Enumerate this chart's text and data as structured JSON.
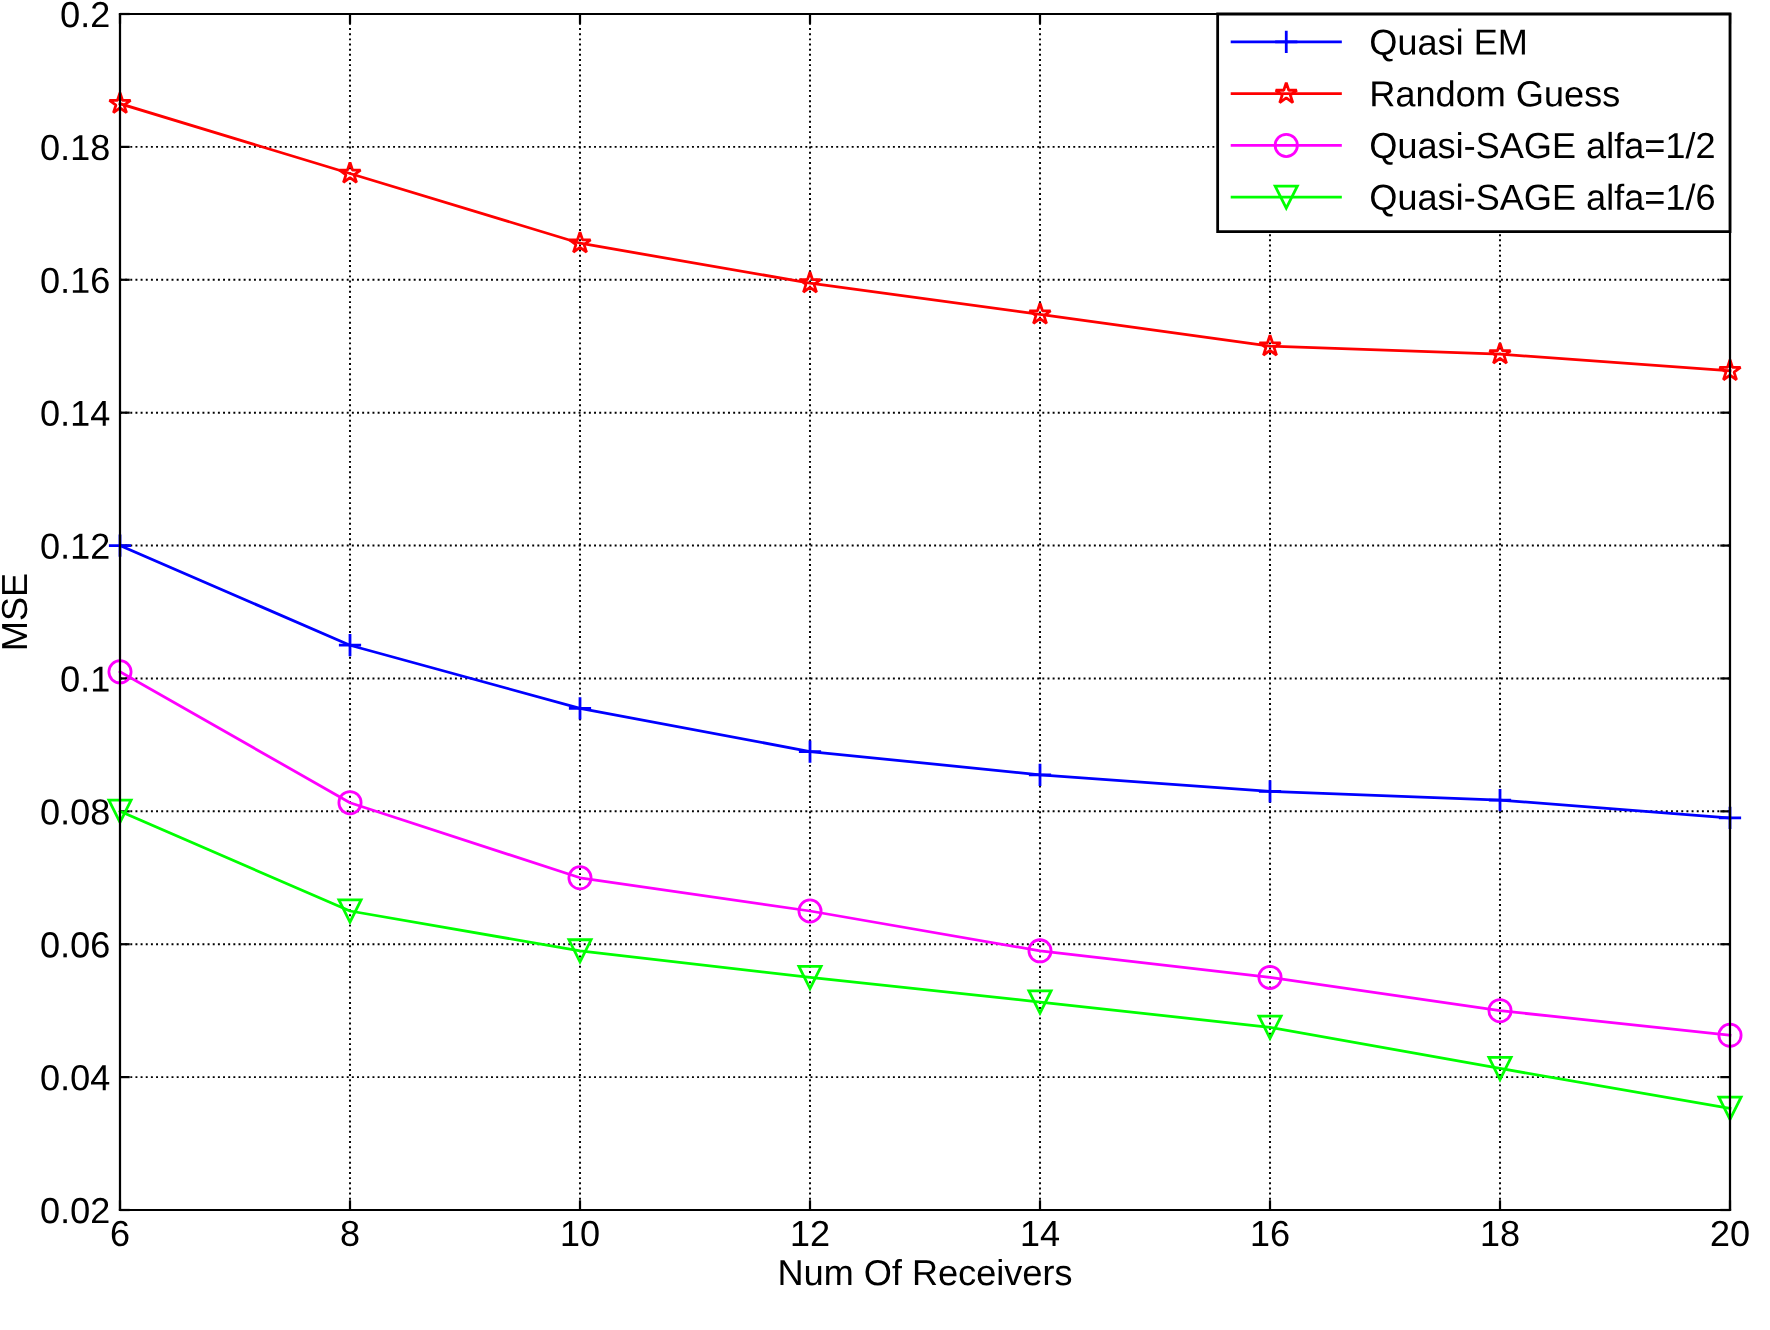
{
  "chart_data": {
    "type": "line",
    "xlabel": "Num Of Receivers",
    "ylabel": "MSE",
    "x": [
      6,
      8,
      10,
      12,
      14,
      16,
      18,
      20
    ],
    "series": [
      {
        "name": "Quasi EM",
        "color": "#0000ff",
        "marker": "cross",
        "values": [
          0.12,
          0.105,
          0.0955,
          0.089,
          0.0855,
          0.083,
          0.0817,
          0.079
        ]
      },
      {
        "name": "Random Guess",
        "color": "#ff0000",
        "marker": "star",
        "values": [
          0.1865,
          0.176,
          0.1655,
          0.1595,
          0.1548,
          0.15,
          0.1488,
          0.1463
        ]
      },
      {
        "name": "Quasi-SAGE alfa=1/2",
        "color": "#ff00ff",
        "marker": "circle",
        "values": [
          0.101,
          0.0813,
          0.07,
          0.065,
          0.059,
          0.055,
          0.05,
          0.0463
        ]
      },
      {
        "name": "Quasi-SAGE alfa=1/6",
        "color": "#00ff00",
        "marker": "triangle",
        "values": [
          0.08,
          0.065,
          0.059,
          0.055,
          0.0513,
          0.0475,
          0.0413,
          0.0353
        ]
      }
    ],
    "xlim": [
      6,
      20
    ],
    "xticks": [
      6,
      8,
      10,
      12,
      14,
      16,
      18,
      20
    ],
    "ylim": [
      0.02,
      0.2
    ],
    "yticks": [
      0.02,
      0.04,
      0.06,
      0.08,
      0.1,
      0.12,
      0.14,
      0.16,
      0.18,
      0.2
    ],
    "grid": true,
    "legend": "top right",
    "line_style": "solid"
  }
}
